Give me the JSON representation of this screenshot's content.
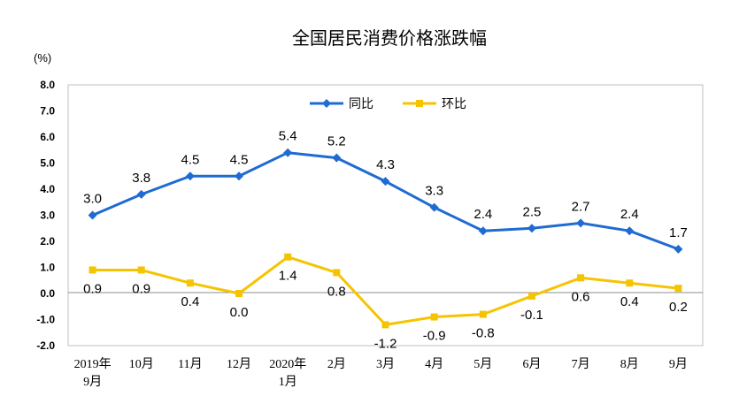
{
  "chart_data": {
    "type": "line",
    "title": "全国居民消费价格涨跌幅",
    "ylabel": "(%)",
    "ylim": [
      -2.0,
      8.0
    ],
    "yticks": [
      "8.0",
      "7.0",
      "6.0",
      "5.0",
      "4.0",
      "3.0",
      "2.0",
      "1.0",
      "0.0",
      "-1.0",
      "-2.0"
    ],
    "categories": [
      [
        "2019年",
        "9月"
      ],
      [
        "10月"
      ],
      [
        "11月"
      ],
      [
        "12月"
      ],
      [
        "2020年",
        "1月"
      ],
      [
        "2月"
      ],
      [
        "3月"
      ],
      [
        "4月"
      ],
      [
        "5月"
      ],
      [
        "6月"
      ],
      [
        "7月"
      ],
      [
        "8月"
      ],
      [
        "9月"
      ]
    ],
    "series": [
      {
        "name": "同比",
        "color": "#1f6bd1",
        "values": [
          3.0,
          3.8,
          4.5,
          4.5,
          5.4,
          5.2,
          4.3,
          3.3,
          2.4,
          2.5,
          2.7,
          2.4,
          1.7
        ],
        "labels": [
          "3.0",
          "3.8",
          "4.5",
          "4.5",
          "5.4",
          "5.2",
          "4.3",
          "3.3",
          "2.4",
          "2.5",
          "2.7",
          "2.4",
          "1.7"
        ]
      },
      {
        "name": "环比",
        "color": "#f5c400",
        "values": [
          0.9,
          0.9,
          0.4,
          0.0,
          1.4,
          0.8,
          -1.2,
          -0.9,
          -0.8,
          -0.1,
          0.6,
          0.4,
          0.2
        ],
        "labels": [
          "0.9",
          "0.9",
          "0.4",
          "0.0",
          "1.4",
          "0.8",
          "-1.2",
          "-0.9",
          "-0.8",
          "-0.1",
          "0.6",
          "0.4",
          "0.2"
        ]
      }
    ],
    "legend": "top-center",
    "grid": false
  }
}
